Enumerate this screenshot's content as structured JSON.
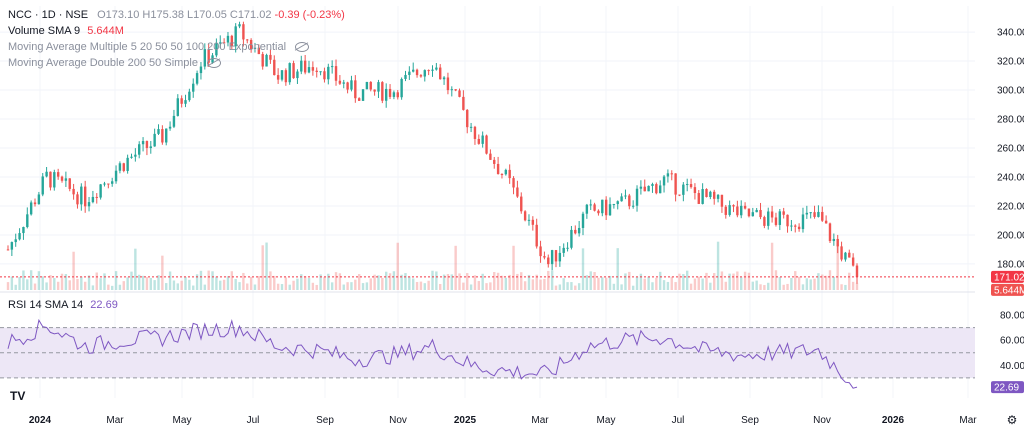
{
  "header": {
    "symbol": "NCC · 1D · NSE",
    "open": "O173.10",
    "high": "H175.38",
    "low": "L170.05",
    "close": "C171.02",
    "change": "-0.39 (-0.23%)"
  },
  "indicators": {
    "volume": {
      "label": "Volume SMA 9",
      "value": "5.644M"
    },
    "ma_multiple": {
      "label": "Moving Average Multiple 5 20 50 50 100 200 Exponential"
    },
    "ma_double": {
      "label": "Moving Average Double 200 50 Simple"
    },
    "rsi": {
      "label": "RSI 14 SMA 14",
      "value": "22.69"
    }
  },
  "price_axis": {
    "ticks": [
      "340.00",
      "320.00",
      "300.00",
      "280.00",
      "260.00",
      "240.00",
      "220.00",
      "200.00",
      "180.00"
    ]
  },
  "rsi_axis": {
    "ticks": [
      "80.00",
      "60.00",
      "40.00"
    ]
  },
  "time_axis": {
    "ticks": [
      "2024",
      "Mar",
      "May",
      "Jul",
      "Sep",
      "Nov",
      "2025",
      "Mar",
      "May",
      "Jul",
      "Sep",
      "Nov",
      "2026",
      "Mar"
    ]
  },
  "tags": {
    "last_price": "171.02",
    "volume": "5.644M",
    "rsi": "22.69"
  },
  "colors": {
    "up": "#26a69a",
    "down": "#ef5350",
    "rsi_line": "#7e57c2",
    "rsi_band": "#ede7f6",
    "last_price_tag": "#f23645",
    "rsi_tag": "#7e57c2"
  },
  "chart_data": [
    {
      "type": "candlestick",
      "title": "NCC · 1D · NSE",
      "ylim": [
        162,
        358
      ],
      "x": [
        "2024-01",
        "2024-02",
        "2024-03",
        "2024-04",
        "2024-05",
        "2024-06",
        "2024-07",
        "2024-08",
        "2024-09",
        "2024-10",
        "2024-11",
        "2024-12",
        "2025-01",
        "2025-02",
        "2025-03",
        "2025-04",
        "2025-05",
        "2025-06",
        "2025-07",
        "2025-08",
        "2025-09",
        "2025-10",
        "2025-11"
      ],
      "close": [
        190,
        240,
        225,
        250,
        268,
        320,
        340,
        310,
        318,
        298,
        300,
        320,
        275,
        235,
        180,
        215,
        222,
        238,
        226,
        214,
        210,
        212,
        171
      ],
      "last_close": 171.02
    },
    {
      "type": "line",
      "title": "RSI 14 SMA 14",
      "ylim": [
        14,
        92
      ],
      "x": [
        "2024-01",
        "2024-02",
        "2024-03",
        "2024-04",
        "2024-05",
        "2024-06",
        "2024-07",
        "2024-08",
        "2024-09",
        "2024-10",
        "2024-11",
        "2024-12",
        "2025-01",
        "2025-02",
        "2025-03",
        "2025-04",
        "2025-05",
        "2025-06",
        "2025-07",
        "2025-08",
        "2025-09",
        "2025-10",
        "2025-11"
      ],
      "values": [
        58,
        72,
        55,
        60,
        62,
        68,
        70,
        55,
        52,
        45,
        48,
        55,
        40,
        35,
        33,
        55,
        60,
        62,
        52,
        48,
        50,
        52,
        22.69
      ],
      "bands": [
        70,
        50,
        30
      ]
    }
  ]
}
